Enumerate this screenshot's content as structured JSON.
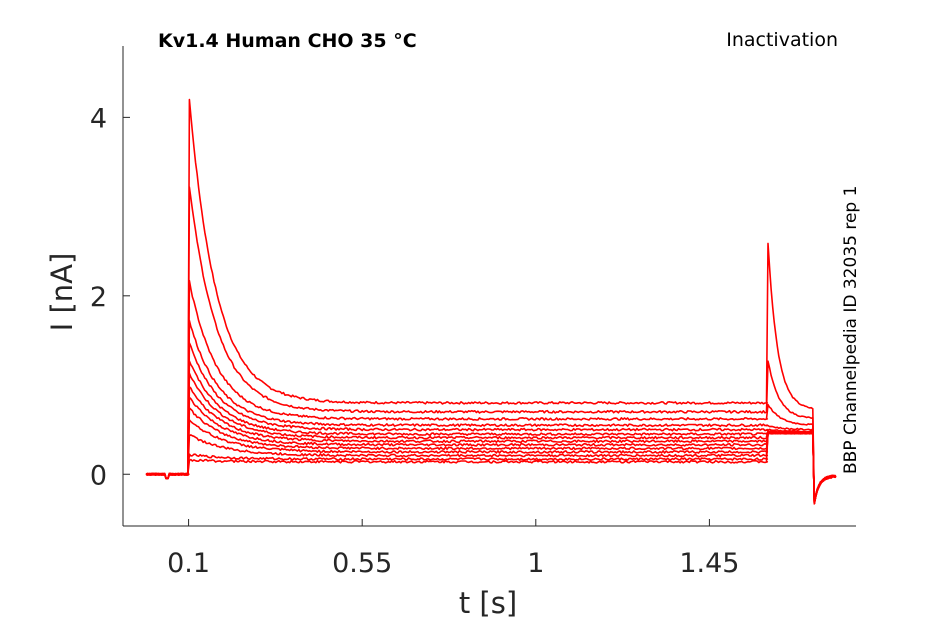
{
  "chart_data": {
    "type": "line",
    "title": "Kv1.4  Human  CHO  35 °C",
    "protocol_label": "Inactivation",
    "side_label": "BBP Channelpedia ID 32035 rep 1",
    "xlabel": "t [s]",
    "ylabel": "I [nA]",
    "xlim": [
      -0.07,
      1.83
    ],
    "ylim": [
      -0.58,
      4.8
    ],
    "xticks": [
      0.1,
      0.55,
      1,
      1.45
    ],
    "xtick_labels": [
      "0.1",
      "0.55",
      "1",
      "1.45"
    ],
    "yticks": [
      0,
      2,
      4
    ],
    "ytick_labels": [
      "0",
      "2",
      "4"
    ],
    "grid": false,
    "legend": "none",
    "line_color": "#ff0000",
    "step_on": 0.1,
    "step_off": 1.6,
    "tail_end": 1.72,
    "trace_end": 1.78,
    "series": [
      {
        "peak": 4.3,
        "steady": 0.8,
        "tail_peak": 2.75,
        "tail_ss": 0.72
      },
      {
        "peak": 3.3,
        "steady": 0.7,
        "tail_peak": 1.32,
        "tail_ss": 0.62
      },
      {
        "peak": 2.2,
        "steady": 0.62,
        "tail_peak": 0.8,
        "tail_ss": 0.55
      },
      {
        "peak": 1.75,
        "steady": 0.55,
        "tail_peak": 0.55,
        "tail_ss": 0.5
      },
      {
        "peak": 1.5,
        "steady": 0.5,
        "tail_peak": 0.5,
        "tail_ss": 0.48
      },
      {
        "peak": 1.3,
        "steady": 0.45,
        "tail_peak": 0.48,
        "tail_ss": 0.47
      },
      {
        "peak": 1.15,
        "steady": 0.41,
        "tail_peak": 0.47,
        "tail_ss": 0.47
      },
      {
        "peak": 1.0,
        "steady": 0.37,
        "tail_peak": 0.46,
        "tail_ss": 0.46
      },
      {
        "peak": 0.88,
        "steady": 0.33,
        "tail_peak": 0.46,
        "tail_ss": 0.46
      },
      {
        "peak": 0.75,
        "steady": 0.29,
        "tail_peak": 0.46,
        "tail_ss": 0.46
      },
      {
        "peak": 0.62,
        "steady": 0.25,
        "tail_peak": 0.46,
        "tail_ss": 0.46
      },
      {
        "peak": 0.45,
        "steady": 0.21,
        "tail_peak": 0.46,
        "tail_ss": 0.46
      },
      {
        "peak": 0.22,
        "steady": 0.17,
        "tail_peak": 0.46,
        "tail_ss": 0.46
      },
      {
        "peak": 0.16,
        "steady": 0.14,
        "tail_peak": 0.46,
        "tail_ss": 0.46
      }
    ]
  }
}
